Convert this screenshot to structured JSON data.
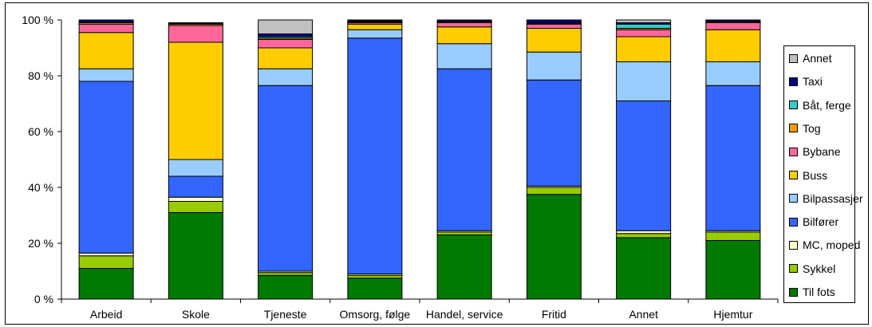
{
  "chart_data": {
    "type": "bar",
    "stacked": true,
    "percent": true,
    "title": "",
    "xlabel": "",
    "ylabel": "",
    "ylim": [
      0,
      100
    ],
    "yticks": [
      "0 %",
      "20 %",
      "40 %",
      "60 %",
      "80 %",
      "100 %"
    ],
    "grid": false,
    "legend_position": "right",
    "categories": [
      "Arbeid",
      "Skole",
      "Tjeneste",
      "Omsorg, følge",
      "Handel, service",
      "Fritid",
      "Annet",
      "Hjemtur"
    ],
    "series": [
      {
        "name": "Til fots",
        "color": "#007A00",
        "values": [
          11,
          31,
          8.5,
          7.5,
          23,
          37.5,
          22,
          21
        ]
      },
      {
        "name": "Sykkel",
        "color": "#99CC00",
        "values": [
          4.5,
          4,
          1,
          1,
          1,
          2.5,
          1.5,
          3
        ]
      },
      {
        "name": "MC, moped",
        "color": "#FFFFCC",
        "values": [
          1,
          1.5,
          0.5,
          0.5,
          0.5,
          0.5,
          1,
          0.5
        ]
      },
      {
        "name": "Bilfører",
        "color": "#3366FF",
        "values": [
          61.5,
          7.5,
          66.5,
          84.5,
          58,
          38,
          46.5,
          52
        ]
      },
      {
        "name": "Bilpassasjer",
        "color": "#99CCFF",
        "values": [
          4.5,
          6,
          6,
          3,
          9,
          10,
          14,
          8.5
        ]
      },
      {
        "name": "Buss",
        "color": "#FFCC00",
        "values": [
          13,
          42,
          7.5,
          2,
          6,
          8.5,
          9,
          11.5
        ]
      },
      {
        "name": "Bybane",
        "color": "#FF6699",
        "values": [
          3,
          6,
          3,
          0.5,
          1.5,
          1.5,
          2.5,
          2.5
        ]
      },
      {
        "name": "Tog",
        "color": "#FF9900",
        "values": [
          0.5,
          0.5,
          0.5,
          0.3,
          0.3,
          0.3,
          0.5,
          0.3
        ]
      },
      {
        "name": "Båt, ferge",
        "color": "#33CCCC",
        "values": [
          0.2,
          0.2,
          0.5,
          0.2,
          0.2,
          0.2,
          1.5,
          0.2
        ]
      },
      {
        "name": "Taxi",
        "color": "#000080",
        "values": [
          0.8,
          0.3,
          1,
          0.3,
          0.5,
          1,
          0.5,
          0.5
        ]
      },
      {
        "name": "Annet",
        "color": "#C0C0C0",
        "values": [
          0,
          0,
          5,
          0.2,
          0,
          0,
          1,
          0
        ]
      }
    ]
  }
}
